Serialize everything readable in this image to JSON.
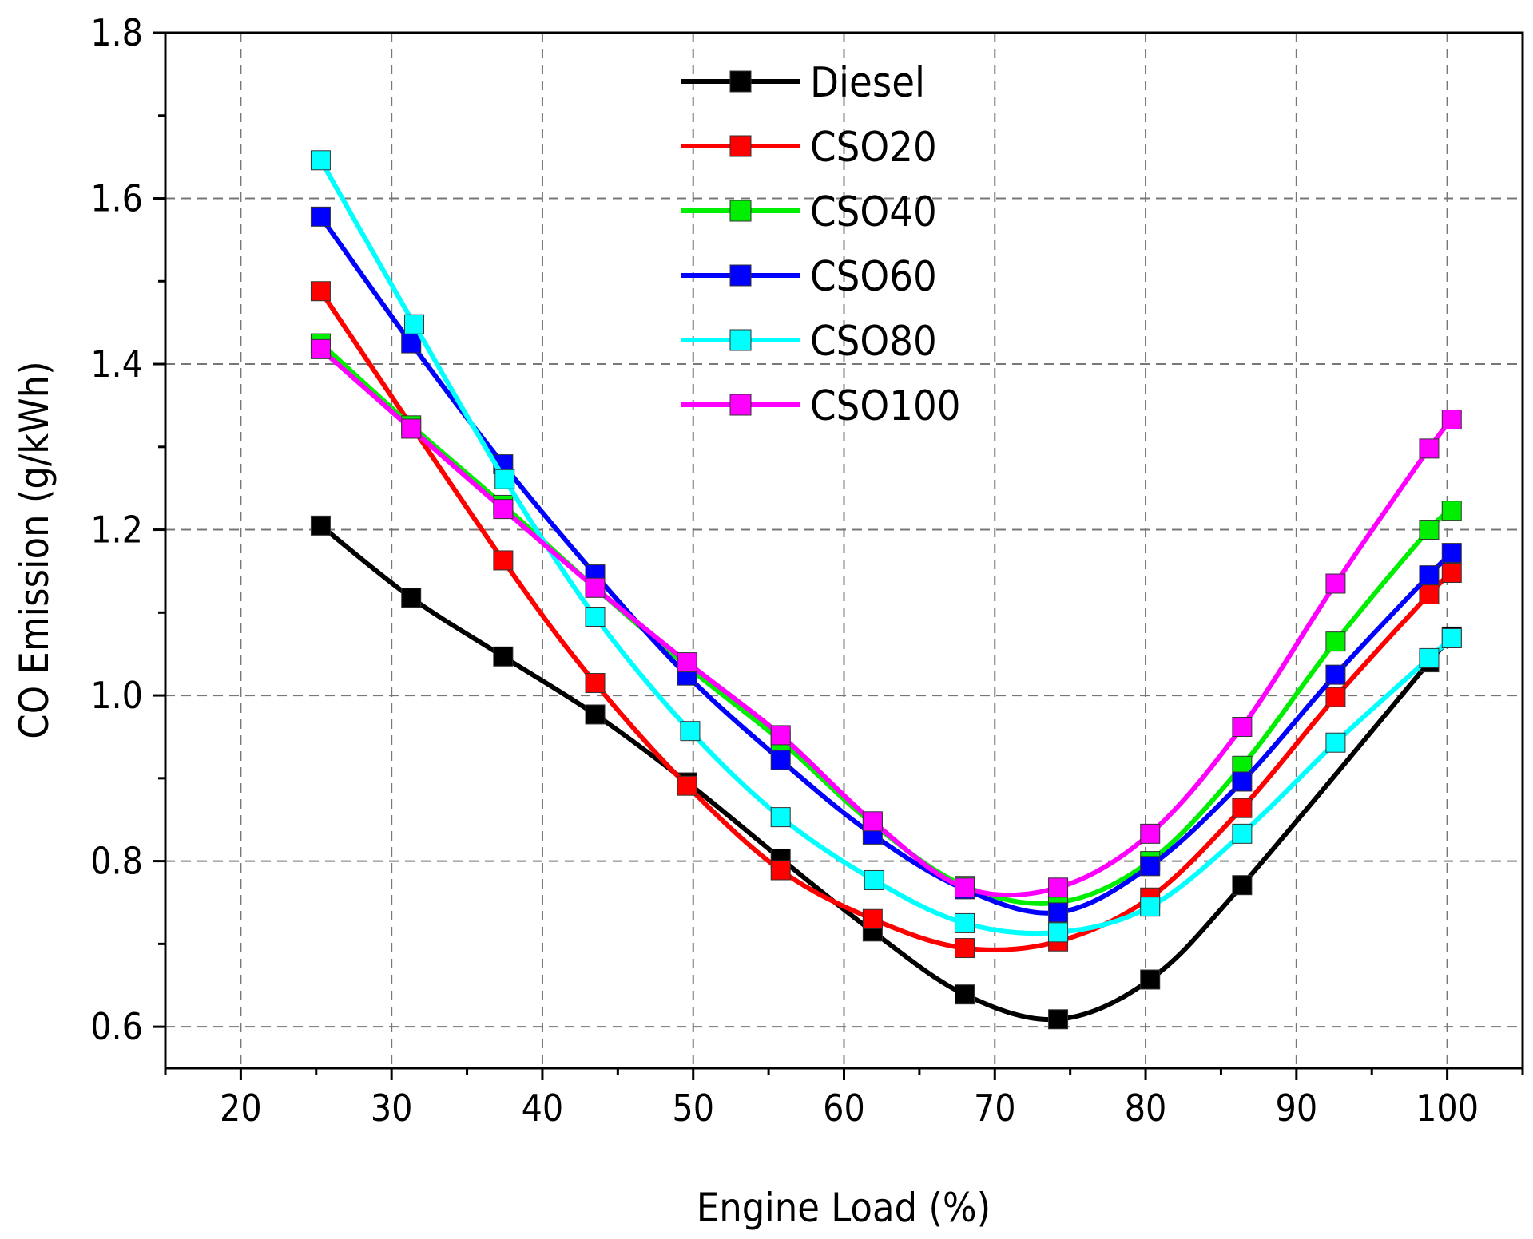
{
  "chart_data": {
    "type": "line",
    "title": "",
    "xlabel": "Engine Load (%)",
    "ylabel": "CO Emission (g/kWh)",
    "xlim": [
      15,
      105
    ],
    "ylim": [
      0.55,
      1.8
    ],
    "xticks": [
      20,
      30,
      40,
      50,
      60,
      70,
      80,
      90,
      100
    ],
    "xtick_labels": [
      "20",
      "30",
      "40",
      "50",
      "60",
      "70",
      "80",
      "90",
      "100"
    ],
    "yticks": [
      0.6,
      0.8,
      1.0,
      1.2,
      1.4,
      1.6,
      1.8
    ],
    "ytick_labels": [
      "0.6",
      "0.8",
      "1.0",
      "1.2",
      "1.4",
      "1.6",
      "1.8"
    ],
    "grid": true,
    "legend_position": "top-center",
    "series": [
      {
        "name": "Diesel",
        "color": "#000000",
        "x": [
          25.3,
          31.3,
          37.4,
          43.5,
          49.6,
          55.8,
          61.9,
          68,
          74.2,
          80.3,
          86.4,
          98.8,
          100.3
        ],
        "y": [
          1.205,
          1.118,
          1.047,
          0.977,
          0.895,
          0.803,
          0.715,
          0.639,
          0.609,
          0.657,
          0.771,
          1.04,
          1.071
        ]
      },
      {
        "name": "CSO20",
        "color": "#ff0000",
        "x": [
          25.3,
          37.4,
          43.5,
          49.6,
          55.8,
          61.9,
          68,
          74.2,
          80.3,
          86.4,
          92.6,
          98.8,
          100.3
        ],
        "y": [
          1.488,
          1.163,
          1.015,
          0.891,
          0.789,
          0.73,
          0.695,
          0.703,
          0.756,
          0.864,
          0.998,
          1.122,
          1.148
        ]
      },
      {
        "name": "CSO40",
        "color": "#00ee00",
        "x": [
          25.3,
          31.3,
          37.4,
          43.5,
          49.6,
          55.8,
          61.9,
          68,
          74.2,
          80.3,
          86.4,
          92.6,
          98.8,
          100.3
        ],
        "y": [
          1.425,
          1.326,
          1.23,
          1.13,
          1.035,
          0.945,
          0.845,
          0.77,
          0.75,
          0.8,
          0.915,
          1.065,
          1.2,
          1.223
        ]
      },
      {
        "name": "CSO60",
        "color": "#0000ff",
        "x": [
          25.3,
          31.3,
          37.4,
          43.5,
          49.6,
          55.8,
          61.9,
          68,
          74.2,
          80.3,
          86.4,
          92.6,
          98.8,
          100.3
        ],
        "y": [
          1.578,
          1.425,
          1.279,
          1.146,
          1.024,
          0.922,
          0.832,
          0.766,
          0.738,
          0.794,
          0.896,
          1.025,
          1.145,
          1.172
        ]
      },
      {
        "name": "CSO80",
        "color": "#00ffff",
        "x": [
          25.3,
          31.5,
          37.5,
          43.5,
          49.8,
          55.8,
          62,
          68,
          74.2,
          80.3,
          86.4,
          92.6,
          98.8,
          100.3
        ],
        "y": [
          1.646,
          1.448,
          1.261,
          1.095,
          0.957,
          0.853,
          0.777,
          0.725,
          0.714,
          0.745,
          0.833,
          0.943,
          1.045,
          1.069
        ]
      },
      {
        "name": "CSO100",
        "color": "#ff00ff",
        "x": [
          25.3,
          31.3,
          37.4,
          43.5,
          49.6,
          55.8,
          61.9,
          68,
          74.2,
          80.3,
          86.4,
          92.6,
          98.8,
          100.3
        ],
        "y": [
          1.418,
          1.322,
          1.225,
          1.13,
          1.04,
          0.952,
          0.848,
          0.768,
          0.768,
          0.833,
          0.962,
          1.135,
          1.298,
          1.333
        ]
      }
    ]
  }
}
